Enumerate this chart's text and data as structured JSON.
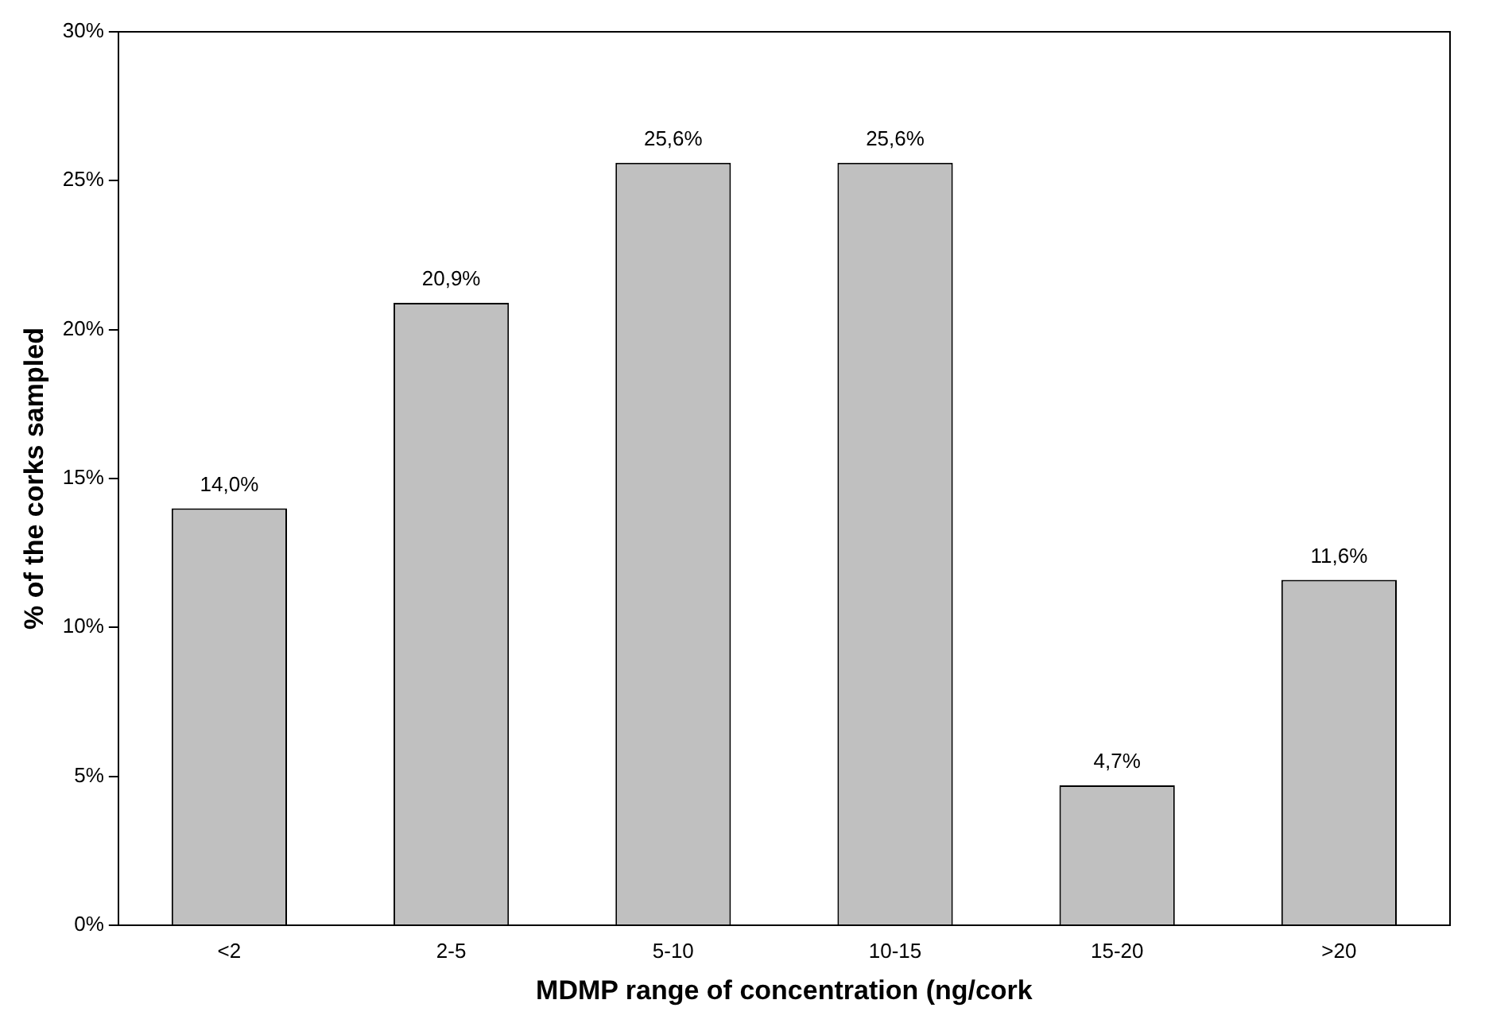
{
  "chart_data": {
    "type": "bar",
    "xlabel": "MDMP range of concentration (ng/cork",
    "ylabel": "% of the corks sampled",
    "categories": [
      "<2",
      "2-5",
      "5-10",
      "10-15",
      "15-20",
      ">20"
    ],
    "values": [
      14.0,
      20.9,
      25.6,
      25.6,
      4.7,
      11.6
    ],
    "value_labels": [
      "14,0%",
      "20,9%",
      "25,6%",
      "25,6%",
      "4,7%",
      "11,6%"
    ],
    "color": "#c0c0c0",
    "ylim": [
      0,
      30
    ],
    "yticks": [
      {
        "value": 0,
        "label": "0%"
      },
      {
        "value": 5,
        "label": "5%"
      },
      {
        "value": 10,
        "label": "10%"
      },
      {
        "value": 15,
        "label": "15%"
      },
      {
        "value": 20,
        "label": "20%"
      },
      {
        "value": 25,
        "label": "25%"
      },
      {
        "value": 30,
        "label": "30%"
      }
    ],
    "grid": false,
    "legend": false
  }
}
